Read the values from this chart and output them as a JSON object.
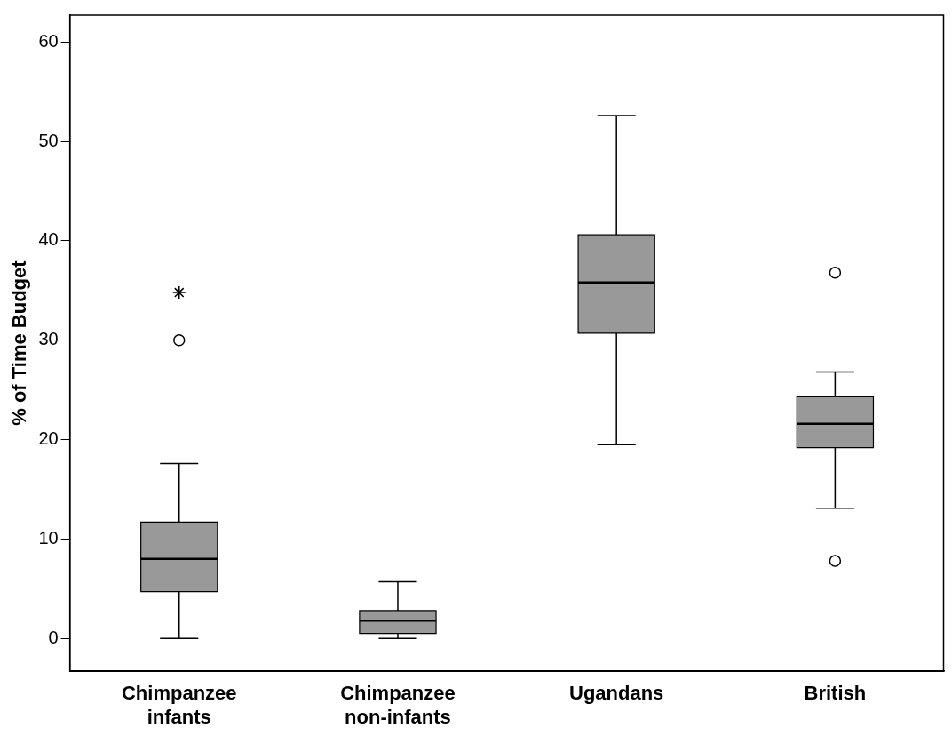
{
  "chart_data": {
    "type": "box",
    "ylabel": "% of Time Budget",
    "categories": [
      "Chimpanzee infants",
      "Chimpanzee non-infants",
      "Ugandans",
      "British"
    ],
    "color": "#999999",
    "boxes": [
      {
        "low": 0,
        "q1": 4.7,
        "median": 8.0,
        "q3": 11.7,
        "high": 17.6,
        "outliers": [
          30.0,
          34.8
        ]
      },
      {
        "low": 0,
        "q1": 0.5,
        "median": 1.8,
        "q3": 2.8,
        "high": 5.7
      },
      {
        "low": 19.5,
        "q1": 30.7,
        "median": 35.8,
        "q3": 40.6,
        "high": 52.6
      },
      {
        "low": 13.1,
        "q1": 19.2,
        "median": 21.6,
        "q3": 24.3,
        "high": 26.8,
        "outliers": [
          36.8,
          7.8
        ]
      }
    ],
    "ylim": [
      -3.3,
      62.7
    ],
    "yticks": [
      0,
      10,
      20,
      30,
      40,
      50,
      60
    ],
    "grid": false
  }
}
